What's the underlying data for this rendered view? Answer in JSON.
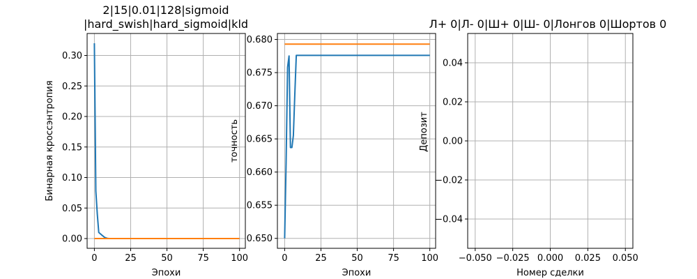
{
  "chart_data": [
    {
      "type": "line",
      "title_lines": [
        "2|15|0.01|128|sigmoid",
        "|hard_swish|hard_sigmoid|kld"
      ],
      "xlabel": "Эпохи",
      "ylabel": "Бинарная кроссэнтропия",
      "xlim": [
        -5,
        104
      ],
      "ylim": [
        -0.016,
        0.336
      ],
      "xticks": [
        0,
        25,
        50,
        75,
        100
      ],
      "xtick_labels": [
        "0",
        "25",
        "50",
        "75",
        "100"
      ],
      "yticks": [
        0.0,
        0.05,
        0.1,
        0.15,
        0.2,
        0.25,
        0.3
      ],
      "ytick_labels": [
        "0.00",
        "0.05",
        "0.10",
        "0.15",
        "0.20",
        "0.25",
        "0.30"
      ],
      "grid": true,
      "series": [
        {
          "color": "#1f77b4",
          "x": [
            0,
            1,
            2,
            3,
            4,
            5,
            6,
            7,
            8,
            9,
            10,
            11,
            12,
            100
          ],
          "y": [
            0.32,
            0.078,
            0.04,
            0.01,
            0.008,
            0.006,
            0.004,
            0.002,
            0.001,
            0.0003,
            0.0001,
            0.0,
            0.0,
            0.0
          ]
        },
        {
          "color": "#ff7f0e",
          "x": [
            0,
            100
          ],
          "y": [
            0.0,
            0.0
          ]
        }
      ]
    },
    {
      "type": "line",
      "title_lines": [],
      "xlabel": "Эпохи",
      "ylabel": "точность",
      "xlim": [
        -5,
        104
      ],
      "ylim": [
        0.6485,
        0.6809
      ],
      "xticks": [
        0,
        25,
        50,
        75,
        100
      ],
      "xtick_labels": [
        "0",
        "25",
        "50",
        "75",
        "100"
      ],
      "yticks": [
        0.65,
        0.655,
        0.66,
        0.665,
        0.67,
        0.675,
        0.68
      ],
      "ytick_labels": [
        "0.650",
        "0.655",
        "0.660",
        "0.665",
        "0.670",
        "0.675",
        "0.680"
      ],
      "grid": true,
      "series": [
        {
          "color": "#1f77b4",
          "x": [
            0,
            1,
            2,
            3,
            4,
            5,
            6,
            7,
            8,
            100
          ],
          "y": [
            0.65,
            0.6615,
            0.6758,
            0.6775,
            0.6637,
            0.6637,
            0.6655,
            0.6718,
            0.6776,
            0.6776
          ]
        },
        {
          "color": "#ff7f0e",
          "x": [
            0,
            100
          ],
          "y": [
            0.6793,
            0.6793
          ]
        }
      ]
    },
    {
      "type": "line",
      "title_lines": [
        "Л+ 0|Л- 0|Ш+ 0|Ш- 0|Лонгов 0|Шортов 0"
      ],
      "xlabel": "Номер сделки",
      "ylabel": "Депозит",
      "xlim": [
        -0.055,
        0.055
      ],
      "ylim": [
        -0.055,
        0.055
      ],
      "xticks": [
        -0.05,
        -0.025,
        0.0,
        0.025,
        0.05
      ],
      "xtick_labels": [
        "−0.050",
        "−0.025",
        "0.000",
        "0.025",
        "0.050"
      ],
      "yticks": [
        -0.04,
        -0.02,
        0.0,
        0.02,
        0.04
      ],
      "ytick_labels": [
        "−0.04",
        "−0.02",
        "0.00",
        "0.02",
        "0.04"
      ],
      "grid": true,
      "series": []
    }
  ]
}
